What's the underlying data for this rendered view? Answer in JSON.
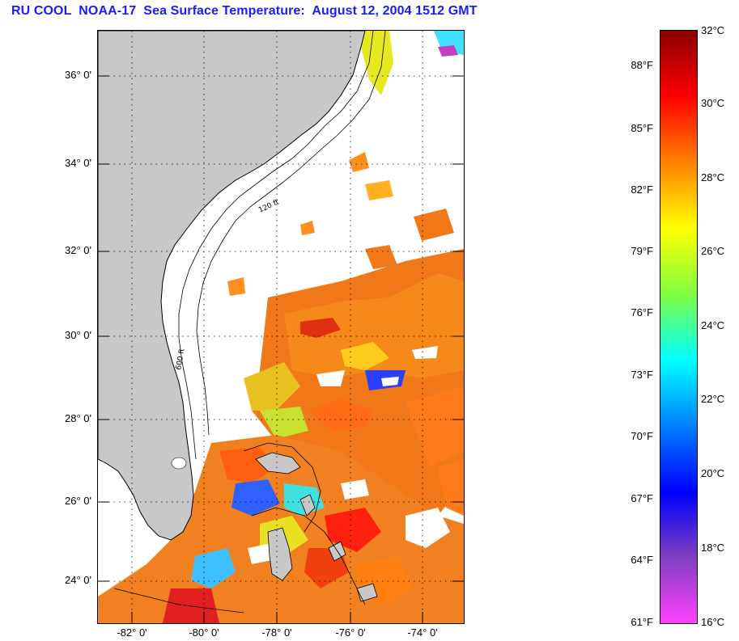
{
  "title": "RU COOL  NOAA-17  Sea Surface Temperature:  August 12, 2004 1512 GMT",
  "lat_labels": [
    "36° 0'",
    "34° 0'",
    "32° 0'",
    "30° 0'",
    "28° 0'",
    "26° 0'",
    "24° 0'"
  ],
  "lon_labels": [
    "-82° 0'",
    "-80° 0'",
    "-78° 0'",
    "-76° 0'",
    "-74° 0'"
  ],
  "isobath_labels": [
    "120 ft",
    "600 ft"
  ],
  "colorbar": {
    "fahrenheit": [
      "88°F",
      "85°F",
      "82°F",
      "79°F",
      "76°F",
      "73°F",
      "70°F",
      "67°F",
      "64°F",
      "61°F"
    ],
    "celsius": [
      "32°C",
      "30°C",
      "28°C",
      "26°C",
      "24°C",
      "22°C",
      "20°C",
      "18°C",
      "16°C"
    ],
    "colors": [
      "#8b0000",
      "#ff0000",
      "#ff8000",
      "#ffff00",
      "#80ff40",
      "#00ffff",
      "#0080ff",
      "#0000ff",
      "#8040c0",
      "#ff40ff"
    ]
  },
  "colors": {
    "title": "#1a1aff",
    "land": "#c8c8c8",
    "cloud": "#ffffff"
  }
}
